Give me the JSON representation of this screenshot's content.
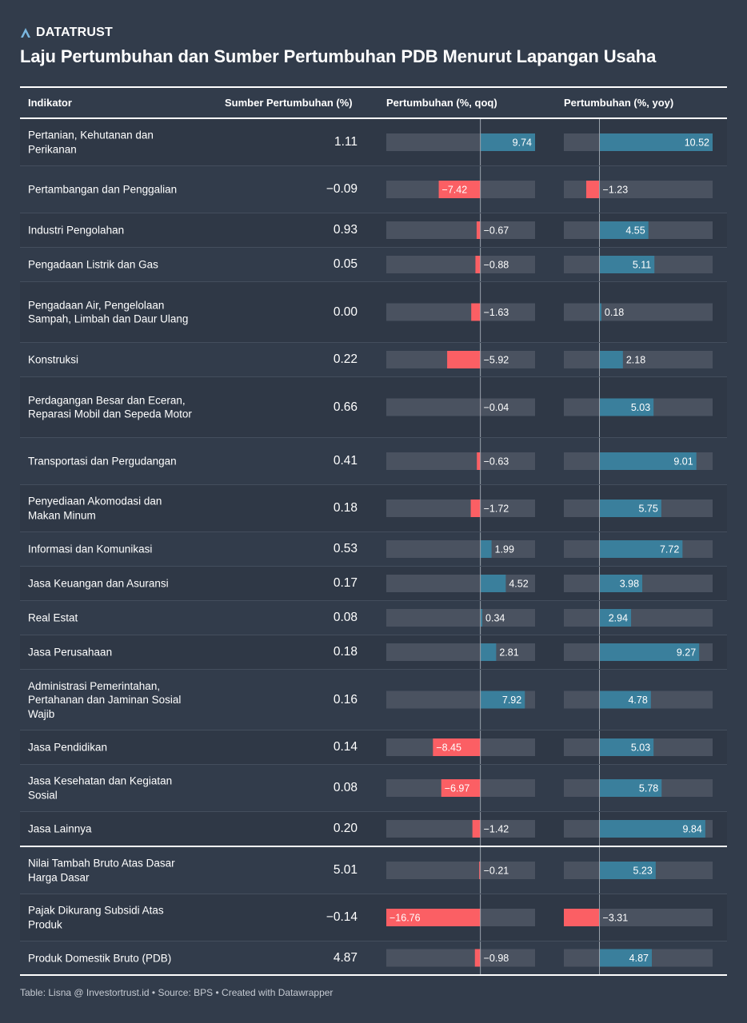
{
  "brand": {
    "name": "DATATRUST",
    "logo_icon": "triangle-a-icon",
    "logo_color": "#7ab7e0"
  },
  "title": "Laju Pertumbuhan dan Sumber Pertumbuhan PDB Menurut Lapangan Usaha",
  "columns": {
    "indicator": "Indikator",
    "source": "Sumber Pertumbuhan (%)",
    "qoq": "Pertumbuhan (%, qoq)",
    "yoy": "Pertumbuhan (%, yoy)"
  },
  "colors": {
    "positive": "#3a7f9c",
    "negative": "#fb5f64",
    "track": "#4a5260",
    "axis": "#9aa3ad"
  },
  "footer": "Table: Lisna @ Investortrust.id • Source: BPS • Created with Datawrapper",
  "chart_data": {
    "type": "table",
    "qoq_range": [
      -16.76,
      9.74
    ],
    "yoy_range": [
      -3.31,
      10.52
    ],
    "rows": [
      {
        "name": "Pertanian, Kehutanan dan Perikanan",
        "contrib": "1.11",
        "qoq": 9.74,
        "qoq_label": "9.74",
        "yoy": 10.52,
        "yoy_label": "10.52"
      },
      {
        "name": "Pertambangan dan Penggalian",
        "contrib": "−0.09",
        "qoq": -7.42,
        "qoq_label": "−7.42",
        "yoy": -1.23,
        "yoy_label": "−1.23"
      },
      {
        "name": "Industri Pengolahan",
        "contrib": "0.93",
        "qoq": -0.67,
        "qoq_label": "−0.67",
        "yoy": 4.55,
        "yoy_label": "4.55"
      },
      {
        "name": "Pengadaan Listrik dan Gas",
        "contrib": "0.05",
        "qoq": -0.88,
        "qoq_label": "−0.88",
        "yoy": 5.11,
        "yoy_label": "5.11"
      },
      {
        "name": "Pengadaan Air, Pengelolaan Sampah, Limbah dan Daur Ulang",
        "contrib": "0.00",
        "qoq": -1.63,
        "qoq_label": "−1.63",
        "yoy": 0.18,
        "yoy_label": "0.18"
      },
      {
        "name": "Konstruksi",
        "contrib": "0.22",
        "qoq": -5.92,
        "qoq_label": "−5.92",
        "yoy": 2.18,
        "yoy_label": "2.18"
      },
      {
        "name": "Perdagangan Besar dan Eceran, Reparasi Mobil dan Sepeda Motor",
        "contrib": "0.66",
        "qoq": -0.04,
        "qoq_label": "−0.04",
        "yoy": 5.03,
        "yoy_label": "5.03"
      },
      {
        "name": "Transportasi dan Pergudangan",
        "contrib": "0.41",
        "qoq": -0.63,
        "qoq_label": "−0.63",
        "yoy": 9.01,
        "yoy_label": "9.01"
      },
      {
        "name": "Penyediaan Akomodasi dan Makan Minum",
        "contrib": "0.18",
        "qoq": -1.72,
        "qoq_label": "−1.72",
        "yoy": 5.75,
        "yoy_label": "5.75"
      },
      {
        "name": "Informasi dan Komunikasi",
        "contrib": "0.53",
        "qoq": 1.99,
        "qoq_label": "1.99",
        "yoy": 7.72,
        "yoy_label": "7.72"
      },
      {
        "name": "Jasa Keuangan dan Asuransi",
        "contrib": "0.17",
        "qoq": 4.52,
        "qoq_label": "4.52",
        "yoy": 3.98,
        "yoy_label": "3.98"
      },
      {
        "name": "Real Estat",
        "contrib": "0.08",
        "qoq": 0.34,
        "qoq_label": "0.34",
        "yoy": 2.94,
        "yoy_label": "2.94"
      },
      {
        "name": "Jasa Perusahaan",
        "contrib": "0.18",
        "qoq": 2.81,
        "qoq_label": "2.81",
        "yoy": 9.27,
        "yoy_label": "9.27"
      },
      {
        "name": "Administrasi Pemerintahan, Pertahanan dan Jaminan Sosial Wajib",
        "contrib": "0.16",
        "qoq": 7.92,
        "qoq_label": "7.92",
        "yoy": 4.78,
        "yoy_label": "4.78"
      },
      {
        "name": "Jasa Pendidikan",
        "contrib": "0.14",
        "qoq": -8.45,
        "qoq_label": "−8.45",
        "yoy": 5.03,
        "yoy_label": "5.03"
      },
      {
        "name": "Jasa Kesehatan dan Kegiatan Sosial",
        "contrib": "0.08",
        "qoq": -6.97,
        "qoq_label": "−6.97",
        "yoy": 5.78,
        "yoy_label": "5.78"
      },
      {
        "name": "Jasa Lainnya",
        "contrib": "0.20",
        "qoq": -1.42,
        "qoq_label": "−1.42",
        "yoy": 9.84,
        "yoy_label": "9.84"
      },
      {
        "name": "Nilai Tambah Bruto Atas Dasar Harga Dasar",
        "contrib": "5.01",
        "qoq": -0.21,
        "qoq_label": "−0.21",
        "yoy": 5.23,
        "yoy_label": "5.23"
      },
      {
        "name": "Pajak Dikurang Subsidi Atas Produk",
        "contrib": "−0.14",
        "qoq": -16.76,
        "qoq_label": "−16.76",
        "yoy": -3.31,
        "yoy_label": "−3.31"
      },
      {
        "name": "Produk Domestik Bruto (PDB)",
        "contrib": "4.87",
        "qoq": -0.98,
        "qoq_label": "−0.98",
        "yoy": 4.87,
        "yoy_label": "4.87"
      }
    ]
  }
}
